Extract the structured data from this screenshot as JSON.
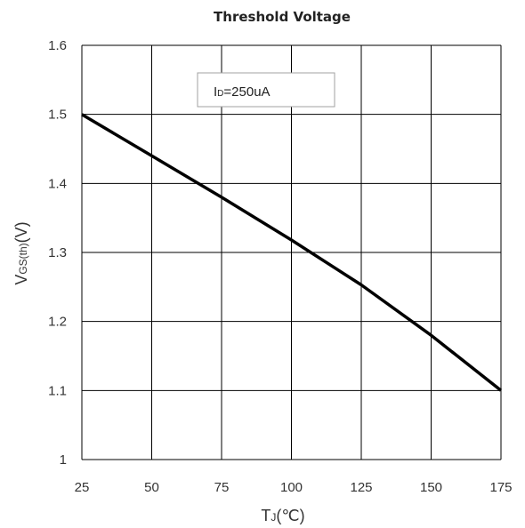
{
  "chart_data": {
    "type": "line",
    "title": "Threshold Voltage",
    "xlabel": {
      "main": "T",
      "sub": "J",
      "unit": "(℃)"
    },
    "ylabel": {
      "main": "V",
      "sub": "GS(th)",
      "unit": "(V)"
    },
    "annotation": {
      "main": "I",
      "sub": "D",
      "rest": "=250uA"
    },
    "xlim": [
      25,
      175
    ],
    "ylim": [
      1,
      1.6
    ],
    "x_ticks": [
      "25",
      "50",
      "75",
      "100",
      "125",
      "150",
      "175"
    ],
    "y_ticks": [
      "1",
      "1.1",
      "1.2",
      "1.3",
      "1.4",
      "1.5",
      "1.6"
    ],
    "grid": true,
    "series": [
      {
        "x": [
          25,
          50,
          75,
          100,
          125,
          150,
          175
        ],
        "y": [
          1.5,
          1.44,
          1.38,
          1.318,
          1.253,
          1.18,
          1.1
        ]
      }
    ]
  },
  "colors": {
    "line": "#000000",
    "grid": "#000000",
    "annotation_border": "#a0a0a0"
  }
}
